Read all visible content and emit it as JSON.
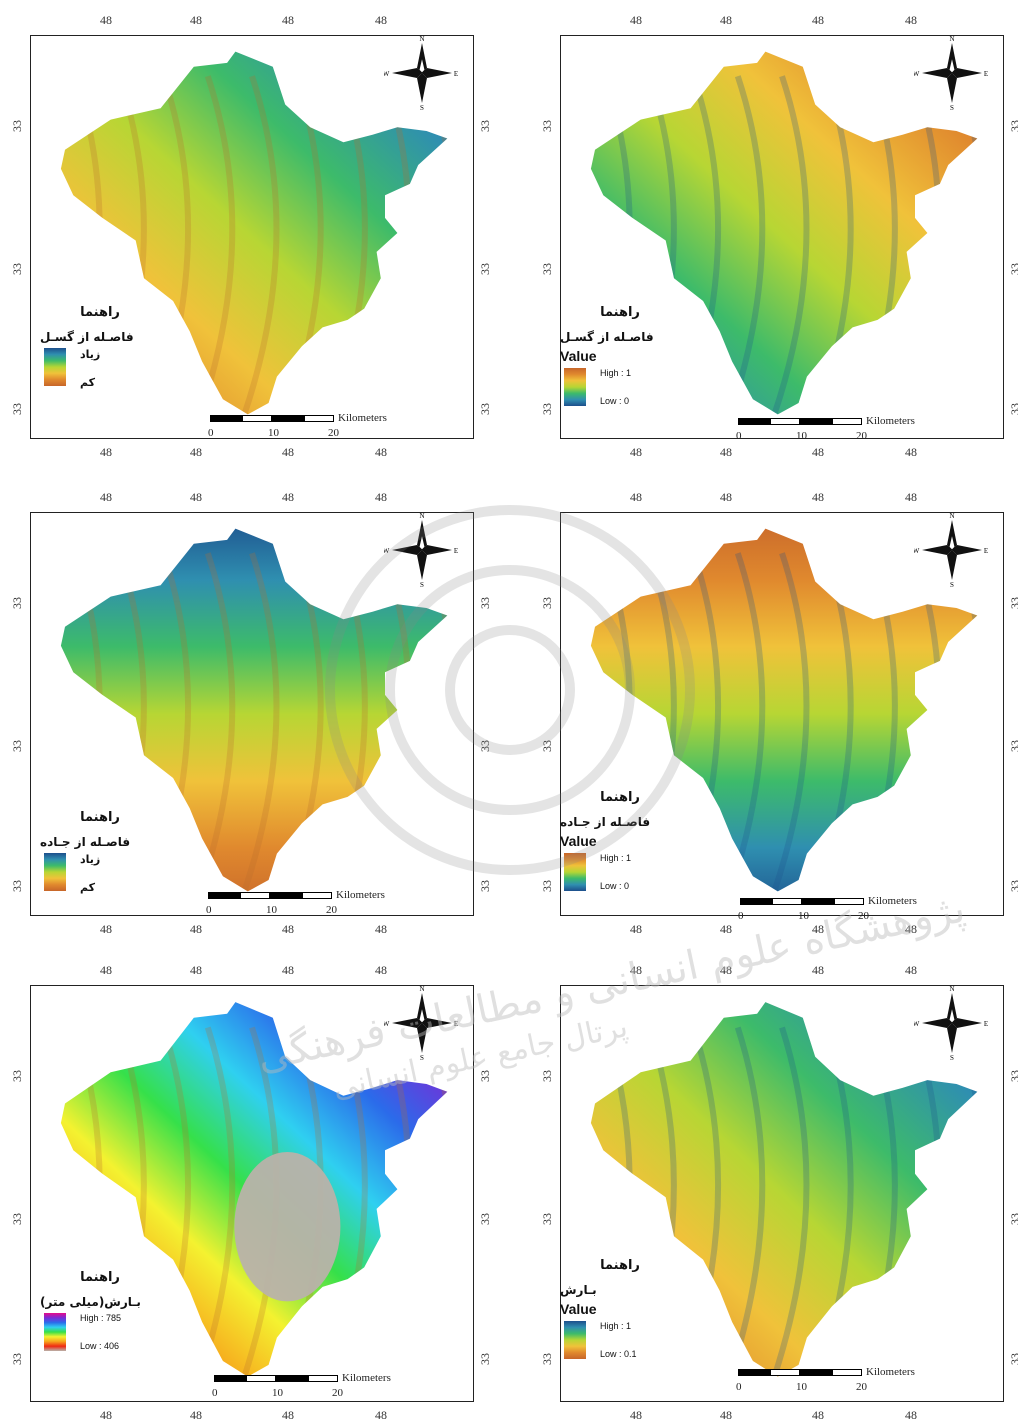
{
  "ticks": {
    "lon": "48",
    "lat": "33"
  },
  "panels": [
    {
      "id": "fault-fa",
      "legend_title": "راهنما",
      "legend_sub": "فاصـله از گسـل",
      "value_label": "",
      "high": "زیاد",
      "low": "کم",
      "colors": [
        "#1d4f8c",
        "#2f8fb0",
        "#3dbb6a",
        "#b7d634",
        "#f0c23a",
        "#e0892e",
        "#c7662a"
      ]
    },
    {
      "id": "fault-norm",
      "legend_title": "راهنما",
      "legend_sub": "فاصـله از گسـل",
      "value_label": "Value",
      "high": "High : 1",
      "low": "Low : 0",
      "colors": [
        "#c7662a",
        "#e0892e",
        "#f0c23a",
        "#b7d634",
        "#3dbb6a",
        "#2f8fb0",
        "#1d4f8c"
      ]
    },
    {
      "id": "road-fa",
      "legend_title": "راهنما",
      "legend_sub": "فاصـله از جـاده",
      "value_label": "",
      "high": "زیاد",
      "low": "کم",
      "colors": [
        "#1d4f8c",
        "#2f8fb0",
        "#3dbb6a",
        "#b7d634",
        "#f0c23a",
        "#e0892e",
        "#c7662a"
      ]
    },
    {
      "id": "road-norm",
      "legend_title": "راهنما",
      "legend_sub": "فاصـله از جـاده",
      "value_label": "Value",
      "high": "High : 1",
      "low": "Low : 0",
      "colors": [
        "#c7662a",
        "#e0892e",
        "#f0c23a",
        "#b7d634",
        "#3dbb6a",
        "#2f8fb0",
        "#1d4f8c"
      ]
    },
    {
      "id": "rain-fa",
      "legend_title": "راهنما",
      "legend_sub": "بـارش(میلی متر)",
      "value_label": "",
      "high": "High : 785",
      "low": "Low : 406",
      "colors": [
        "#e60a8a",
        "#7a2bd6",
        "#2b6bea",
        "#2fd0f0",
        "#35e04a",
        "#f4f230",
        "#f7a51c",
        "#ef2a12",
        "#b9b2aa"
      ]
    },
    {
      "id": "rain-norm",
      "legend_title": "راهنما",
      "legend_sub": "بـارش",
      "value_label": "Value",
      "high": "High : 1",
      "low": "Low : 0.1",
      "colors": [
        "#1d4f8c",
        "#2f8fb0",
        "#3dbb6a",
        "#b7d634",
        "#f0c23a",
        "#e0892e",
        "#c7662a"
      ]
    }
  ],
  "scale": {
    "unit": "Kilometers",
    "labels": [
      "0",
      "10",
      "20"
    ]
  },
  "compass": {
    "n": "N",
    "s": "S",
    "e": "E",
    "w": "W"
  },
  "watermark": {
    "line1": "پژوهشگاه علوم انسانی و مطالعات فرهنگی",
    "line2": "پرتال جامع علوم انسانی"
  }
}
